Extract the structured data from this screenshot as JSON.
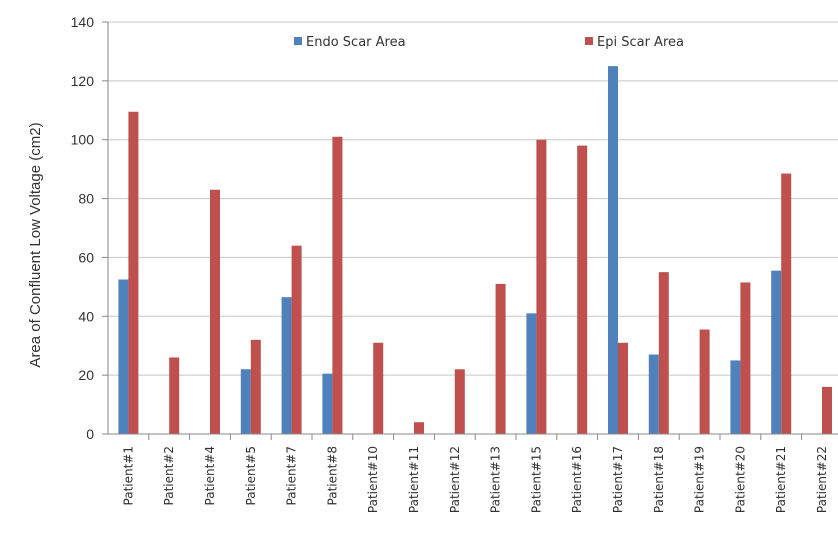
{
  "chart_data": {
    "type": "bar",
    "ylabel": "Area of Confluent Low Voltage (cm2)",
    "xlabel": "",
    "ylim": [
      0,
      140
    ],
    "yticks": [
      0,
      20,
      40,
      60,
      80,
      100,
      120,
      140
    ],
    "grid": true,
    "legend_position": "top",
    "categories": [
      "Patient#1",
      "Patient#2",
      "Patient#4",
      "Patient#5",
      "Patient#7",
      "Patient#8",
      "Patient#10",
      "Patient#11",
      "Patient#12",
      "Patient#13",
      "Patient#15",
      "Patient#16",
      "Patient#17",
      "Patient#18",
      "Patient#19",
      "Patient#20",
      "Patient#21",
      "Patient#22"
    ],
    "series": [
      {
        "name": "Endo Scar Area",
        "color": "#4f81bd",
        "values": [
          52.5,
          0,
          0,
          22,
          46.5,
          20.5,
          0,
          0,
          0,
          0,
          41,
          0,
          125,
          27,
          0,
          25,
          55.5,
          0
        ]
      },
      {
        "name": "Epi Scar Area",
        "color": "#c0504d",
        "values": [
          109.5,
          26,
          83,
          32,
          64,
          101,
          31,
          4,
          22,
          51,
          100,
          98,
          31,
          55,
          35.5,
          51.5,
          88.5,
          16
        ]
      }
    ]
  }
}
